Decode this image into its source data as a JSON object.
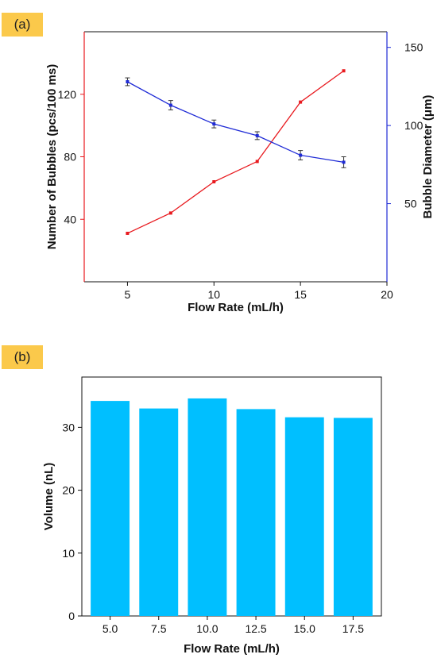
{
  "panels": {
    "a": "(a)",
    "b": "(b)"
  },
  "colors": {
    "left_series": "#e8191e",
    "right_series": "#1f2bd6",
    "bars": "#00bfff",
    "label_bg": "#fbc94b"
  },
  "chart_data": [
    {
      "type": "line",
      "xlabel": "Flow Rate (mL/h)",
      "ylabel_left": "Number of Bubbles (pcs/100 ms)",
      "ylabel_right": "Bubble  Diameter (μm)",
      "xlim": [
        2.5,
        20
      ],
      "xticks": [
        5,
        10,
        15,
        20
      ],
      "ylim_left": [
        0,
        160
      ],
      "yticks_left": [
        40,
        80,
        120
      ],
      "ylim_right": [
        0,
        160
      ],
      "yticks_right": [
        50,
        100,
        150
      ],
      "x": [
        5,
        7.5,
        10,
        12.5,
        15,
        17.5
      ],
      "series": [
        {
          "axis": "left",
          "color": "#e8191e",
          "values": [
            31,
            44,
            64,
            77,
            115,
            135
          ]
        },
        {
          "axis": "right",
          "color": "#1f2bd6",
          "values": [
            128,
            113,
            101,
            93.5,
            81,
            76.5
          ],
          "errors": [
            2.5,
            3,
            2.5,
            2.5,
            3,
            3.5
          ]
        }
      ]
    },
    {
      "type": "bar",
      "xlabel": "Flow Rate (mL/h)",
      "ylabel": "Volume (nL)",
      "categories": [
        "5.0",
        "7.5",
        "10.0",
        "12.5",
        "15.0",
        "17.5"
      ],
      "values": [
        34.2,
        33.0,
        34.6,
        32.9,
        31.6,
        31.5
      ],
      "ylim": [
        0,
        38
      ],
      "yticks": [
        0,
        10,
        20,
        30
      ]
    }
  ]
}
